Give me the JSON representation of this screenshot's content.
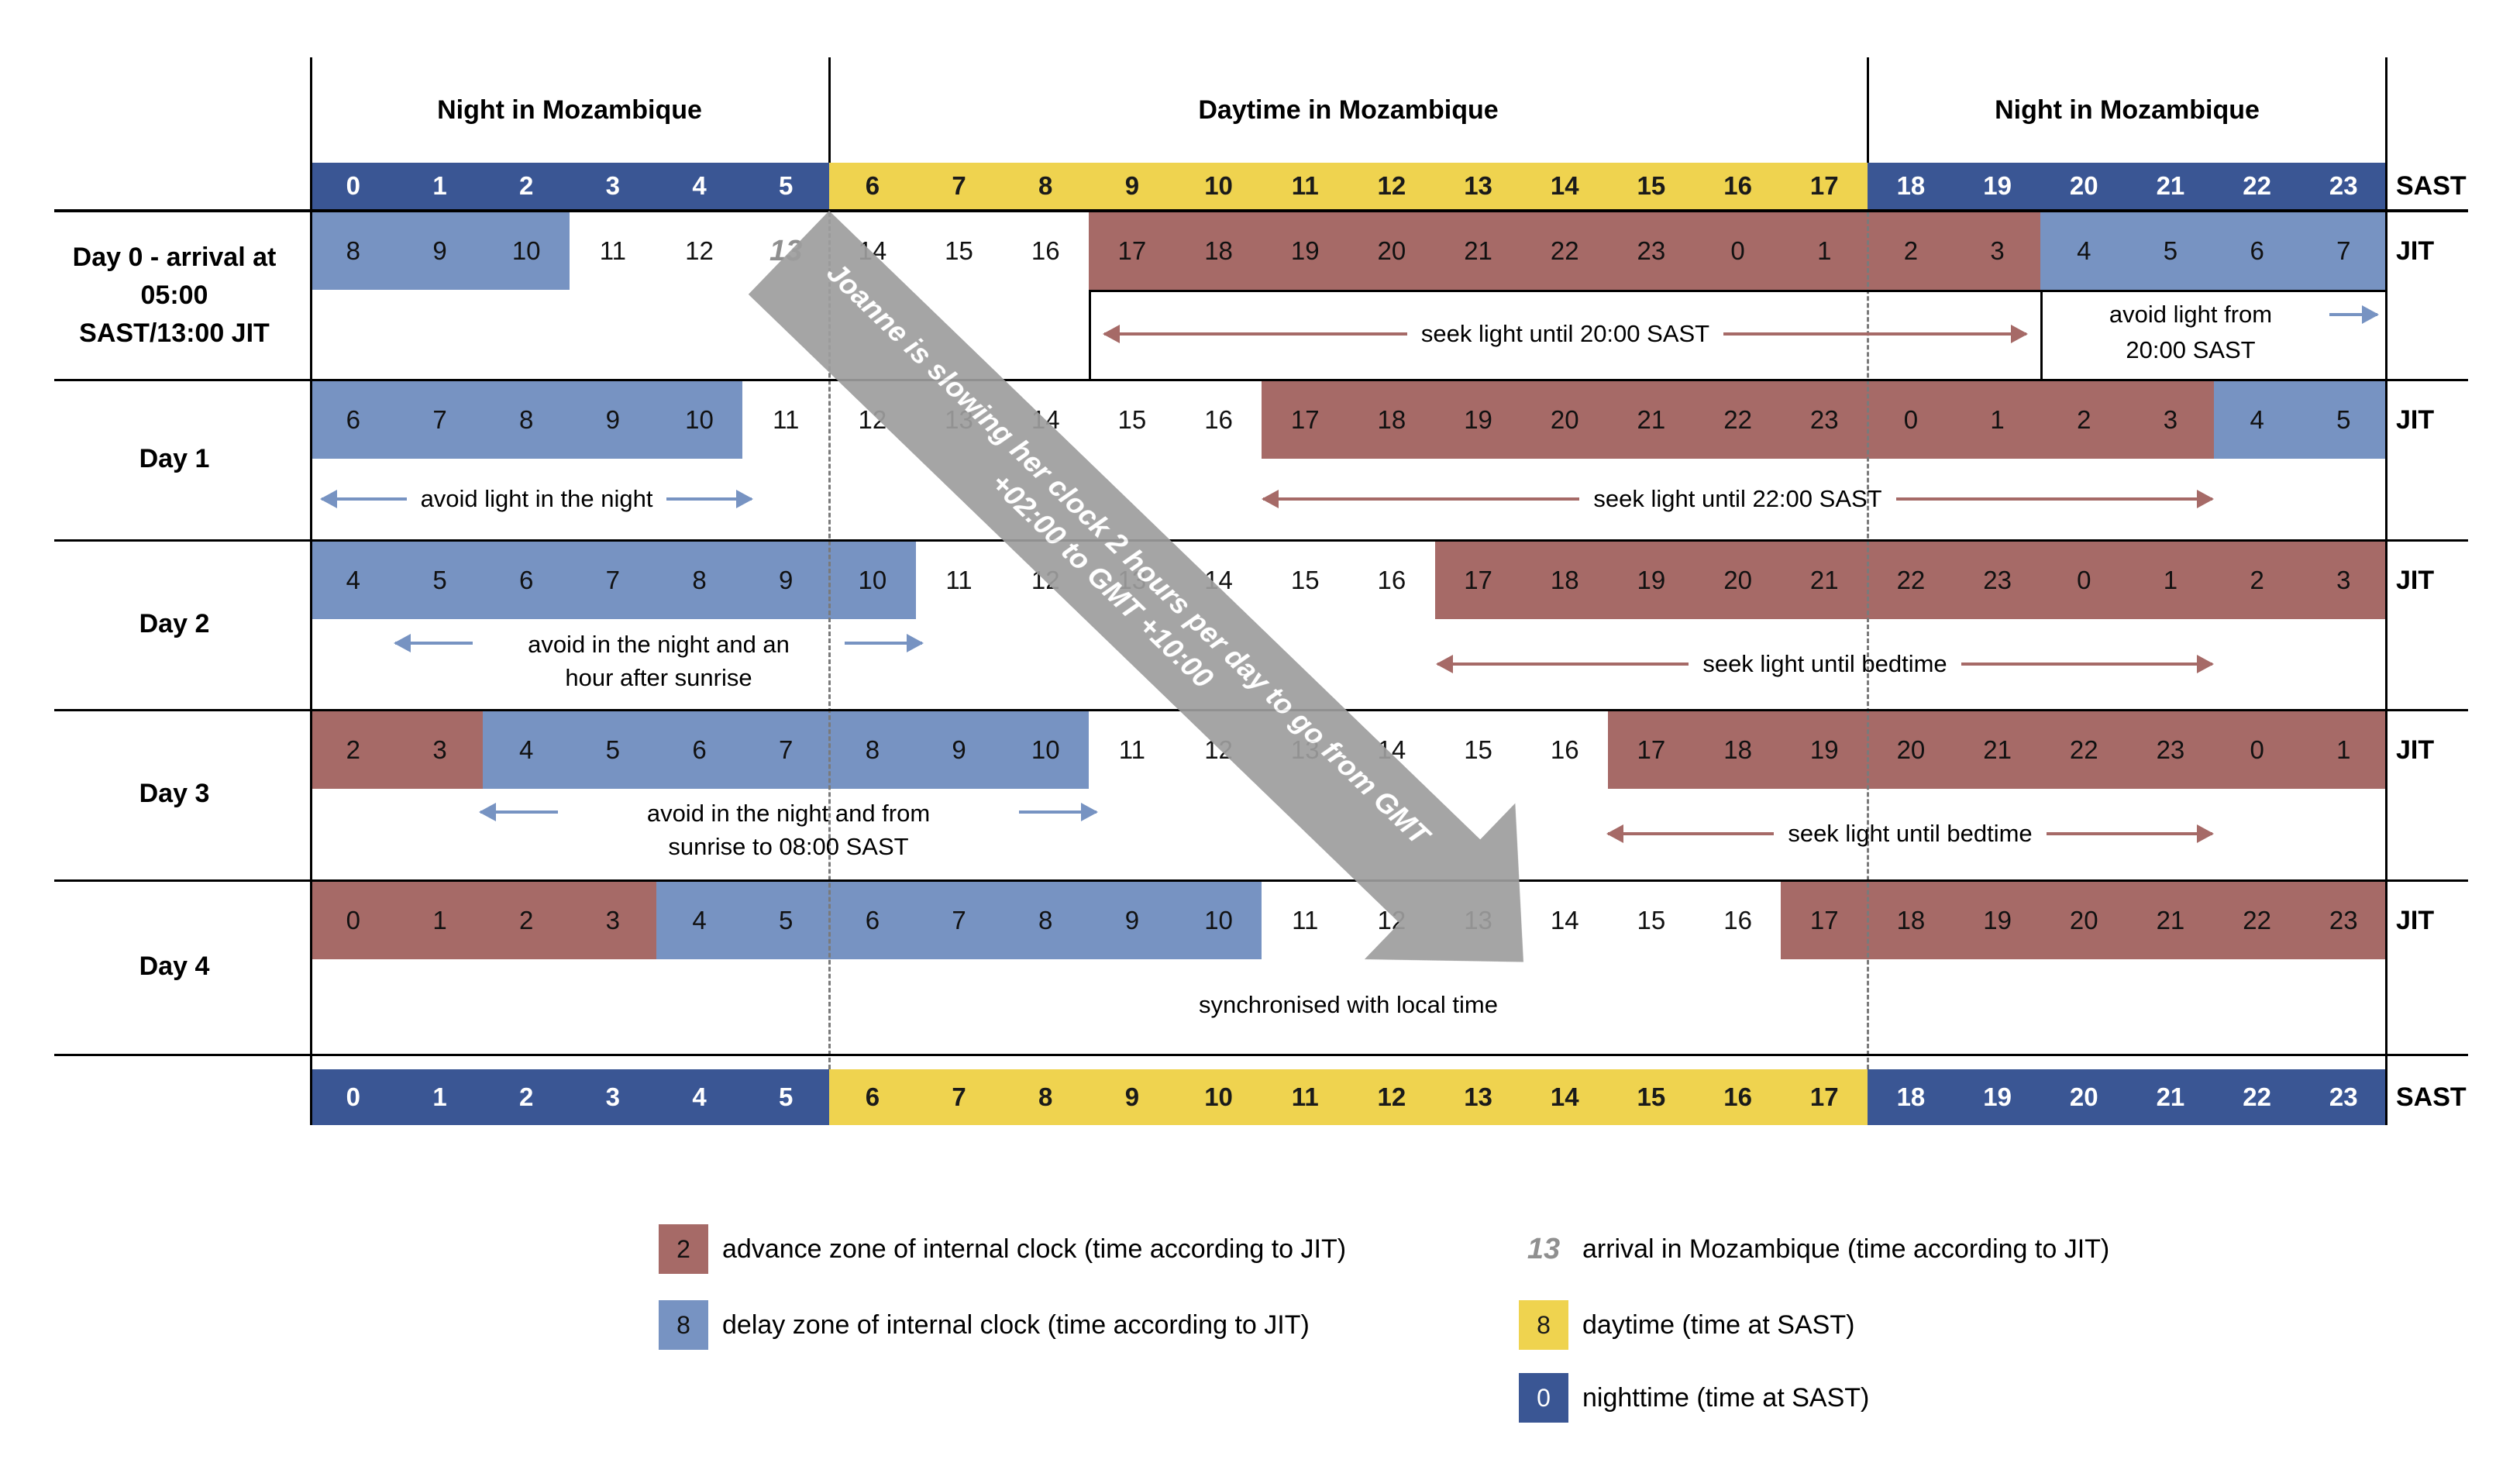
{
  "colors": {
    "night": "#3A5694",
    "day": "#EFD34F",
    "delay": "#7793C2",
    "advance": "#A66A67",
    "arrow": "#9D9D9D",
    "arrival_text": "#8F8F8F",
    "dash": "#7A7A7A"
  },
  "header": {
    "night_left": "Night in Mozambique",
    "day": "Daytime in Mozambique",
    "night_right": "Night in Mozambique"
  },
  "units": {
    "sast": "SAST",
    "jit": "JIT"
  },
  "arrow_note": "Joanne is slowing her clock 2 hours per day to go from GMT +02:00 to GMT +10:00",
  "sast_cells": [
    {
      "v": "0",
      "c": "night"
    },
    {
      "v": "1",
      "c": "night"
    },
    {
      "v": "2",
      "c": "night"
    },
    {
      "v": "3",
      "c": "night"
    },
    {
      "v": "4",
      "c": "night"
    },
    {
      "v": "5",
      "c": "night"
    },
    {
      "v": "6",
      "c": "day"
    },
    {
      "v": "7",
      "c": "day"
    },
    {
      "v": "8",
      "c": "day"
    },
    {
      "v": "9",
      "c": "day"
    },
    {
      "v": "10",
      "c": "day"
    },
    {
      "v": "11",
      "c": "day"
    },
    {
      "v": "12",
      "c": "day"
    },
    {
      "v": "13",
      "c": "day"
    },
    {
      "v": "14",
      "c": "day"
    },
    {
      "v": "15",
      "c": "day"
    },
    {
      "v": "16",
      "c": "day"
    },
    {
      "v": "17",
      "c": "day"
    },
    {
      "v": "18",
      "c": "night"
    },
    {
      "v": "19",
      "c": "night"
    },
    {
      "v": "20",
      "c": "night"
    },
    {
      "v": "21",
      "c": "night"
    },
    {
      "v": "22",
      "c": "night"
    },
    {
      "v": "23",
      "c": "night"
    }
  ],
  "days": [
    {
      "label_lines": [
        "Day 0 - arrival at",
        "05:00",
        "SAST/13:00 JIT"
      ],
      "cells": [
        {
          "v": "8",
          "c": "delay"
        },
        {
          "v": "9",
          "c": "delay"
        },
        {
          "v": "10",
          "c": "delay"
        },
        {
          "v": "11",
          "c": "none"
        },
        {
          "v": "12",
          "c": "none"
        },
        {
          "v": "13",
          "c": "arrival"
        },
        {
          "v": "14",
          "c": "none"
        },
        {
          "v": "15",
          "c": "none"
        },
        {
          "v": "16",
          "c": "none"
        },
        {
          "v": "17",
          "c": "advance"
        },
        {
          "v": "18",
          "c": "advance"
        },
        {
          "v": "19",
          "c": "advance"
        },
        {
          "v": "20",
          "c": "advance"
        },
        {
          "v": "21",
          "c": "advance"
        },
        {
          "v": "22",
          "c": "advance"
        },
        {
          "v": "23",
          "c": "advance"
        },
        {
          "v": "0",
          "c": "advance"
        },
        {
          "v": "1",
          "c": "advance"
        },
        {
          "v": "2",
          "c": "advance"
        },
        {
          "v": "3",
          "c": "advance"
        },
        {
          "v": "4",
          "c": "delay"
        },
        {
          "v": "5",
          "c": "delay"
        },
        {
          "v": "6",
          "c": "delay"
        },
        {
          "v": "7",
          "c": "delay"
        }
      ],
      "annotations": {
        "seek": "seek light until 20:00 SAST",
        "avoid_line1": "avoid light from",
        "avoid_line2": "20:00 SAST"
      }
    },
    {
      "label_lines": [
        "Day 1"
      ],
      "cells": [
        {
          "v": "6",
          "c": "delay"
        },
        {
          "v": "7",
          "c": "delay"
        },
        {
          "v": "8",
          "c": "delay"
        },
        {
          "v": "9",
          "c": "delay"
        },
        {
          "v": "10",
          "c": "delay"
        },
        {
          "v": "11",
          "c": "none"
        },
        {
          "v": "12",
          "c": "none"
        },
        {
          "v": "13",
          "c": "none"
        },
        {
          "v": "14",
          "c": "none"
        },
        {
          "v": "15",
          "c": "none"
        },
        {
          "v": "16",
          "c": "none"
        },
        {
          "v": "17",
          "c": "advance"
        },
        {
          "v": "18",
          "c": "advance"
        },
        {
          "v": "19",
          "c": "advance"
        },
        {
          "v": "20",
          "c": "advance"
        },
        {
          "v": "21",
          "c": "advance"
        },
        {
          "v": "22",
          "c": "advance"
        },
        {
          "v": "23",
          "c": "advance"
        },
        {
          "v": "0",
          "c": "advance"
        },
        {
          "v": "1",
          "c": "advance"
        },
        {
          "v": "2",
          "c": "advance"
        },
        {
          "v": "3",
          "c": "advance"
        },
        {
          "v": "4",
          "c": "delay"
        },
        {
          "v": "5",
          "c": "delay"
        }
      ],
      "annotations": {
        "avoid": "avoid light in the night",
        "seek": "seek light until 22:00 SAST"
      }
    },
    {
      "label_lines": [
        "Day 2"
      ],
      "cells": [
        {
          "v": "4",
          "c": "delay"
        },
        {
          "v": "5",
          "c": "delay"
        },
        {
          "v": "6",
          "c": "delay"
        },
        {
          "v": "7",
          "c": "delay"
        },
        {
          "v": "8",
          "c": "delay"
        },
        {
          "v": "9",
          "c": "delay"
        },
        {
          "v": "10",
          "c": "delay"
        },
        {
          "v": "11",
          "c": "none"
        },
        {
          "v": "12",
          "c": "none"
        },
        {
          "v": "13",
          "c": "none"
        },
        {
          "v": "14",
          "c": "none"
        },
        {
          "v": "15",
          "c": "none"
        },
        {
          "v": "16",
          "c": "none"
        },
        {
          "v": "17",
          "c": "advance"
        },
        {
          "v": "18",
          "c": "advance"
        },
        {
          "v": "19",
          "c": "advance"
        },
        {
          "v": "20",
          "c": "advance"
        },
        {
          "v": "21",
          "c": "advance"
        },
        {
          "v": "22",
          "c": "advance"
        },
        {
          "v": "23",
          "c": "advance"
        },
        {
          "v": "0",
          "c": "advance"
        },
        {
          "v": "1",
          "c": "advance"
        },
        {
          "v": "2",
          "c": "advance"
        },
        {
          "v": "3",
          "c": "advance"
        }
      ],
      "annotations": {
        "avoid_lines": [
          "avoid in the night and an",
          "hour after sunrise"
        ],
        "seek": "seek light until bedtime"
      }
    },
    {
      "label_lines": [
        "Day 3"
      ],
      "cells": [
        {
          "v": "2",
          "c": "advance"
        },
        {
          "v": "3",
          "c": "advance"
        },
        {
          "v": "4",
          "c": "delay"
        },
        {
          "v": "5",
          "c": "delay"
        },
        {
          "v": "6",
          "c": "delay"
        },
        {
          "v": "7",
          "c": "delay"
        },
        {
          "v": "8",
          "c": "delay"
        },
        {
          "v": "9",
          "c": "delay"
        },
        {
          "v": "10",
          "c": "delay"
        },
        {
          "v": "11",
          "c": "none"
        },
        {
          "v": "12",
          "c": "none"
        },
        {
          "v": "13",
          "c": "none"
        },
        {
          "v": "14",
          "c": "none"
        },
        {
          "v": "15",
          "c": "none"
        },
        {
          "v": "16",
          "c": "none"
        },
        {
          "v": "17",
          "c": "advance"
        },
        {
          "v": "18",
          "c": "advance"
        },
        {
          "v": "19",
          "c": "advance"
        },
        {
          "v": "20",
          "c": "advance"
        },
        {
          "v": "21",
          "c": "advance"
        },
        {
          "v": "22",
          "c": "advance"
        },
        {
          "v": "23",
          "c": "advance"
        },
        {
          "v": "0",
          "c": "advance"
        },
        {
          "v": "1",
          "c": "advance"
        }
      ],
      "annotations": {
        "avoid_lines": [
          "avoid in the night and from",
          "sunrise to 08:00 SAST"
        ],
        "seek": "seek light until bedtime"
      }
    },
    {
      "label_lines": [
        "Day 4"
      ],
      "cells": [
        {
          "v": "0",
          "c": "advance"
        },
        {
          "v": "1",
          "c": "advance"
        },
        {
          "v": "2",
          "c": "advance"
        },
        {
          "v": "3",
          "c": "advance"
        },
        {
          "v": "4",
          "c": "delay"
        },
        {
          "v": "5",
          "c": "delay"
        },
        {
          "v": "6",
          "c": "delay"
        },
        {
          "v": "7",
          "c": "delay"
        },
        {
          "v": "8",
          "c": "delay"
        },
        {
          "v": "9",
          "c": "delay"
        },
        {
          "v": "10",
          "c": "delay"
        },
        {
          "v": "11",
          "c": "none"
        },
        {
          "v": "12",
          "c": "none"
        },
        {
          "v": "13",
          "c": "none"
        },
        {
          "v": "14",
          "c": "none"
        },
        {
          "v": "15",
          "c": "none"
        },
        {
          "v": "16",
          "c": "none"
        },
        {
          "v": "17",
          "c": "advance"
        },
        {
          "v": "18",
          "c": "advance"
        },
        {
          "v": "19",
          "c": "advance"
        },
        {
          "v": "20",
          "c": "advance"
        },
        {
          "v": "21",
          "c": "advance"
        },
        {
          "v": "22",
          "c": "advance"
        },
        {
          "v": "23",
          "c": "advance"
        }
      ],
      "annotations": {
        "sync": "synchronised with local time"
      }
    }
  ],
  "legend": {
    "advance": {
      "value": "2",
      "label": "advance zone of internal clock (time according to JIT)"
    },
    "delay": {
      "value": "8",
      "label": "delay zone of internal clock (time according to JIT)"
    },
    "arrival": {
      "value": "13",
      "label": "arrival in Mozambique (time according to JIT)"
    },
    "daytime": {
      "value": "8",
      "label": "daytime (time at SAST)"
    },
    "nighttime": {
      "value": "0",
      "label": "nighttime (time at SAST)"
    }
  }
}
